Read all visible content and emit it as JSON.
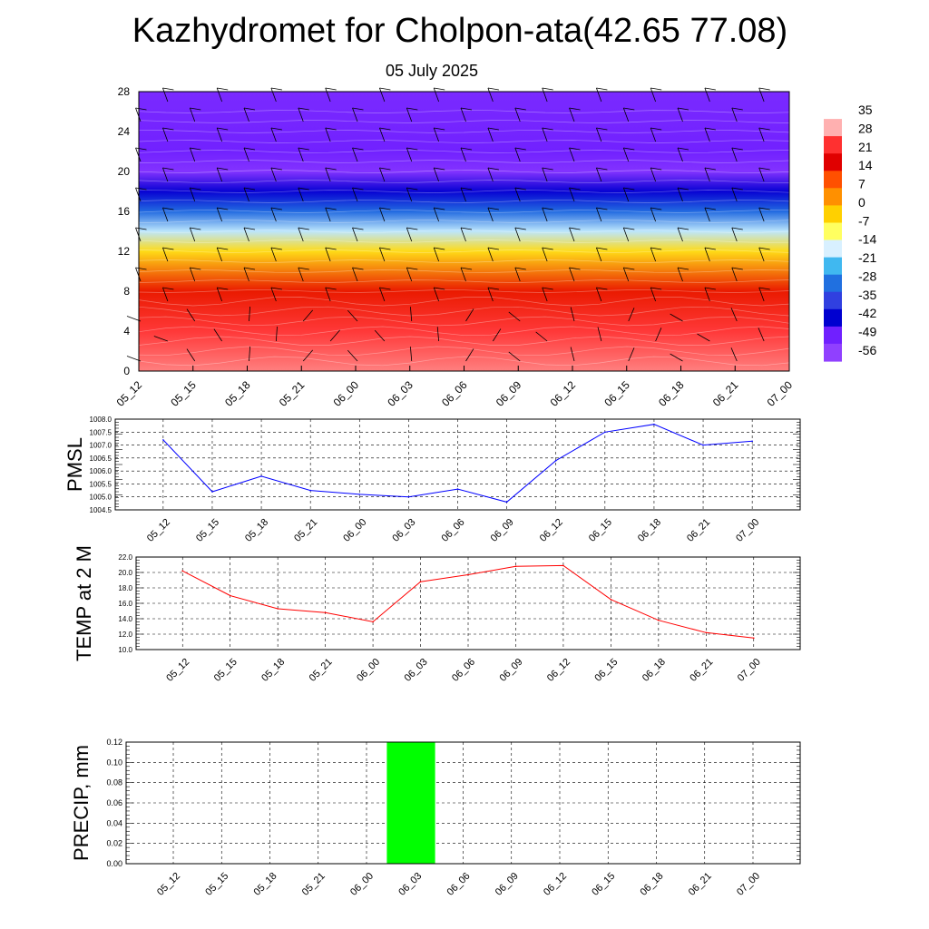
{
  "title": "Kazhydromet for Cholpon-ata(42.65 77.08)",
  "subtitle": "05 July 2025",
  "colors": {
    "pmsl_line": "#0000ff",
    "temp_line": "#ff0000",
    "precip_bar": "#00ff00",
    "colorbar": [
      "#ffffff",
      "#ffb0b0",
      "#ff3030",
      "#e00000",
      "#ff5000",
      "#ff9000",
      "#ffd000",
      "#ffff60",
      "#d8f0ff",
      "#40b8f0",
      "#2070e0",
      "#3040e0",
      "#0000d0",
      "#7020ff",
      "#9040ff"
    ]
  },
  "chart_data": [
    {
      "type": "heatmap",
      "name": "cross-section",
      "x_ticks": [
        "05_12",
        "05_15",
        "05_18",
        "05_21",
        "06_00",
        "06_03",
        "06_06",
        "06_09",
        "06_12",
        "06_15",
        "06_18",
        "06_21",
        "07_00"
      ],
      "y_ticks": [
        "0",
        "4",
        "8",
        "12",
        "16",
        "20",
        "24",
        "28"
      ],
      "ylim": [
        0,
        28
      ],
      "colorbar_labels": [
        "35",
        "28",
        "21",
        "14",
        "7",
        "0",
        "-7",
        "-14",
        "-21",
        "-28",
        "-35",
        "-42",
        "-49",
        "-56"
      ],
      "temperature_profile": [
        {
          "level": 0,
          "value": 28
        },
        {
          "level": 4,
          "value": 24
        },
        {
          "level": 8,
          "value": 14
        },
        {
          "level": 12,
          "value": -7
        },
        {
          "level": 14,
          "value": -21
        },
        {
          "level": 16,
          "value": -35
        },
        {
          "level": 18,
          "value": -49
        },
        {
          "level": 20,
          "value": -60
        },
        {
          "level": 22,
          "value": -56
        },
        {
          "level": 28,
          "value": -58
        }
      ]
    },
    {
      "type": "line",
      "name": "pmsl",
      "ylabel": "PMSL",
      "categories": [
        "05_12",
        "05_15",
        "05_18",
        "05_21",
        "06_00",
        "06_03",
        "06_06",
        "06_09",
        "06_12",
        "06_15",
        "06_18",
        "06_21",
        "07_00"
      ],
      "values": [
        1007.2,
        1005.2,
        1005.8,
        1005.25,
        1005.1,
        1005.0,
        1005.3,
        1004.8,
        1006.4,
        1007.5,
        1007.8,
        1007.0,
        1007.15
      ],
      "ylim": [
        1004.5,
        1008.0
      ],
      "y_ticks": [
        "1004.5",
        "1005.0",
        "1005.5",
        "1006.0",
        "1006.5",
        "1007.0",
        "1007.5",
        "1008.0"
      ]
    },
    {
      "type": "line",
      "name": "temp",
      "ylabel": "TEMP at 2 M",
      "categories": [
        "05_12",
        "05_15",
        "05_18",
        "05_21",
        "06_00",
        "06_03",
        "06_06",
        "06_09",
        "06_12",
        "06_15",
        "06_18",
        "06_21",
        "07_00"
      ],
      "values": [
        20.2,
        17.0,
        15.3,
        14.8,
        13.6,
        18.8,
        19.7,
        20.8,
        20.9,
        16.5,
        13.8,
        12.2,
        11.5
      ],
      "ylim": [
        10.0,
        22.0
      ],
      "y_ticks": [
        "10.0",
        "12.0",
        "14.0",
        "16.0",
        "18.0",
        "20.0",
        "22.0"
      ]
    },
    {
      "type": "bar",
      "name": "precip",
      "ylabel": "PRECIP, mm",
      "categories": [
        "05_12",
        "05_15",
        "05_18",
        "05_21",
        "06_00",
        "06_03",
        "06_06",
        "06_09",
        "06_12",
        "06_15",
        "06_18",
        "06_21",
        "07_00"
      ],
      "values": [
        0,
        0,
        0,
        0,
        0,
        0.12,
        0,
        0,
        0,
        0,
        0,
        0,
        0
      ],
      "ylim": [
        0,
        0.12
      ],
      "y_ticks": [
        "0.00",
        "0.02",
        "0.04",
        "0.06",
        "0.08",
        "0.10",
        "0.12"
      ]
    }
  ]
}
